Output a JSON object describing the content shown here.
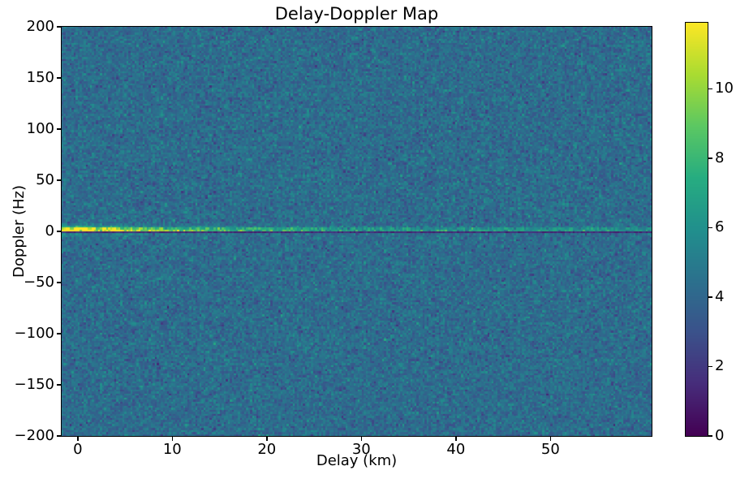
{
  "chart_data": {
    "type": "heatmap",
    "title": "Delay-Doppler Map",
    "xlabel": "Delay (km)",
    "ylabel": "Doppler (Hz)",
    "xlim": [
      -1.7,
      60.7
    ],
    "ylim": [
      -200,
      200
    ],
    "xticks": [
      0,
      10,
      20,
      30,
      40,
      50
    ],
    "yticks": [
      200,
      150,
      100,
      50,
      0,
      -50,
      -100,
      -150,
      -200
    ],
    "grid": false,
    "legend": null,
    "colormap": "viridis",
    "colormap_stops": [
      [
        0.0,
        68,
        1,
        84
      ],
      [
        0.125,
        71,
        45,
        123
      ],
      [
        0.25,
        59,
        82,
        139
      ],
      [
        0.375,
        44,
        113,
        142
      ],
      [
        0.5,
        33,
        144,
        141
      ],
      [
        0.625,
        39,
        173,
        129
      ],
      [
        0.75,
        92,
        200,
        99
      ],
      [
        0.875,
        170,
        220,
        50
      ],
      [
        1.0,
        253,
        231,
        37
      ]
    ],
    "colorbar": {
      "position": "right",
      "vmin": 0,
      "vmax": 11.9,
      "ticks": [
        0,
        2,
        4,
        6,
        8,
        10
      ]
    },
    "heatmap": {
      "nx": 291,
      "ny": 202,
      "seed": 1234,
      "noise": {
        "mean": 4.25,
        "std": 0.75
      },
      "features": {
        "ridge": {
          "description": "bright zero-Doppler ridge peaking ~11.9 near zero delay, decaying with delay but visible to right edge",
          "doppler_center_hz": 1.5,
          "sigma_hz": 1.8,
          "base": 2.2,
          "amp": 6.2,
          "decay_km": 12,
          "speckle_min": 0.55,
          "speckle_range": 0.9
        },
        "halo": {
          "description": "diffuse green glow around the ridge at small delays",
          "amp": 2.2,
          "sigma_hz": 3.5,
          "decay_km": 7
        },
        "notch": {
          "description": "thin dark line along 0 Hz spanning all delays",
          "doppler_min_hz": -1.6,
          "doppler_max_hz": 0.6,
          "value_min": 0.7,
          "value_range": 1.3
        }
      }
    }
  }
}
